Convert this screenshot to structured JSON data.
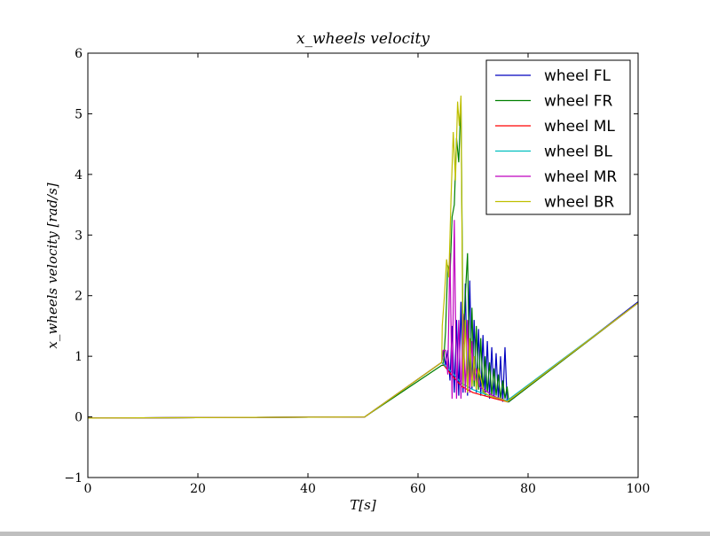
{
  "chart_data": {
    "type": "line",
    "title": "x_wheels velocity",
    "xlabel": "T[s]",
    "ylabel": "x_wheels velocity [rad/s]",
    "xlim": [
      0,
      100
    ],
    "ylim": [
      -1,
      6
    ],
    "xticks": [
      0,
      20,
      40,
      60,
      80,
      100
    ],
    "yticks": [
      -1,
      0,
      1,
      2,
      3,
      4,
      5,
      6
    ],
    "grid": false,
    "legend_position": "top-right",
    "series": [
      {
        "name": "wheel FL",
        "color": "#0000bf",
        "x": [
          0,
          50.3,
          64.3,
          64.6,
          65.0,
          65.4,
          65.8,
          66.2,
          66.6,
          67.0,
          67.4,
          67.8,
          68.2,
          68.6,
          69.0,
          69.4,
          69.8,
          70.2,
          70.6,
          71.0,
          71.4,
          71.8,
          72.2,
          72.6,
          73.0,
          73.4,
          73.8,
          74.2,
          74.6,
          75.0,
          75.4,
          75.8,
          76.2,
          76.5,
          100
        ],
        "y": [
          -0.02,
          0.0,
          0.9,
          1.1,
          0.85,
          1.1,
          0.6,
          1.5,
          0.4,
          1.6,
          0.35,
          1.9,
          0.4,
          2.2,
          0.35,
          2.25,
          0.45,
          1.6,
          0.4,
          1.45,
          0.35,
          1.35,
          0.35,
          1.25,
          0.3,
          1.15,
          0.3,
          1.05,
          0.28,
          1.0,
          0.25,
          1.15,
          0.25,
          0.25,
          1.9
        ]
      },
      {
        "name": "wheel FR",
        "color": "#008000",
        "x": [
          0,
          50.3,
          64.3,
          64.6,
          65.0,
          65.4,
          65.8,
          66.2,
          66.6,
          67.0,
          67.4,
          67.8,
          68.2,
          68.6,
          69.0,
          69.4,
          69.8,
          70.2,
          70.6,
          71.0,
          71.4,
          71.8,
          72.2,
          72.6,
          73.0,
          73.4,
          73.8,
          74.2,
          74.6,
          75.0,
          75.4,
          75.8,
          76.2,
          76.5,
          100
        ],
        "y": [
          -0.02,
          0.0,
          0.85,
          0.85,
          1.4,
          2.5,
          2.3,
          3.3,
          3.5,
          4.6,
          4.2,
          5.25,
          1.2,
          2.0,
          2.7,
          0.5,
          1.8,
          0.5,
          1.5,
          0.45,
          1.3,
          0.4,
          1.0,
          0.4,
          0.9,
          0.35,
          0.8,
          0.35,
          0.7,
          0.3,
          0.6,
          0.3,
          0.5,
          0.25,
          1.88
        ]
      },
      {
        "name": "wheel ML",
        "color": "#ff0000",
        "x": [
          0,
          50.3,
          64.3,
          66.0,
          68.0,
          70.0,
          72.0,
          74.0,
          76.2,
          100
        ],
        "y": [
          -0.02,
          0.0,
          0.9,
          0.7,
          0.5,
          0.4,
          0.35,
          0.3,
          0.25,
          1.88
        ]
      },
      {
        "name": "wheel BL",
        "color": "#00bfbf",
        "x": [
          0,
          50.3,
          64.3,
          66.0,
          68.0,
          70.0,
          72.0,
          74.0,
          76.2,
          100
        ],
        "y": [
          -0.02,
          0.0,
          0.9,
          0.75,
          0.55,
          0.45,
          0.38,
          0.32,
          0.27,
          1.88
        ]
      },
      {
        "name": "wheel MR",
        "color": "#bf00bf",
        "x": [
          0,
          50.3,
          64.3,
          64.6,
          65.0,
          65.4,
          65.8,
          66.2,
          66.6,
          67.0,
          67.4,
          67.8,
          68.2,
          68.6,
          69.0,
          69.4,
          69.8,
          70.2,
          70.6,
          71.2,
          72.0,
          72.8,
          73.6,
          74.4,
          75.2,
          76.2,
          100
        ],
        "y": [
          -0.02,
          0.0,
          0.9,
          1.1,
          1.1,
          0.7,
          2.7,
          0.3,
          3.25,
          0.3,
          1.6,
          0.3,
          1.7,
          0.4,
          1.6,
          0.4,
          1.25,
          0.6,
          0.8,
          0.5,
          0.45,
          0.4,
          0.35,
          0.32,
          0.3,
          0.25,
          1.88
        ]
      },
      {
        "name": "wheel BR",
        "color": "#bfbf00",
        "x": [
          0,
          50.3,
          64.3,
          64.4,
          64.8,
          65.2,
          65.6,
          66.0,
          66.4,
          66.8,
          67.2,
          67.5,
          67.8,
          68.2,
          68.6,
          69.0,
          69.4,
          69.8,
          70.2,
          70.6,
          71.0,
          72.0,
          73.0,
          74.0,
          75.0,
          76.2,
          100
        ],
        "y": [
          -0.02,
          0.0,
          0.9,
          1.5,
          2.0,
          2.6,
          2.3,
          3.6,
          4.7,
          3.9,
          5.2,
          4.8,
          5.3,
          0.5,
          1.6,
          0.4,
          1.3,
          0.5,
          1.0,
          0.45,
          0.8,
          0.4,
          0.35,
          0.32,
          0.3,
          0.25,
          1.88
        ]
      }
    ]
  }
}
